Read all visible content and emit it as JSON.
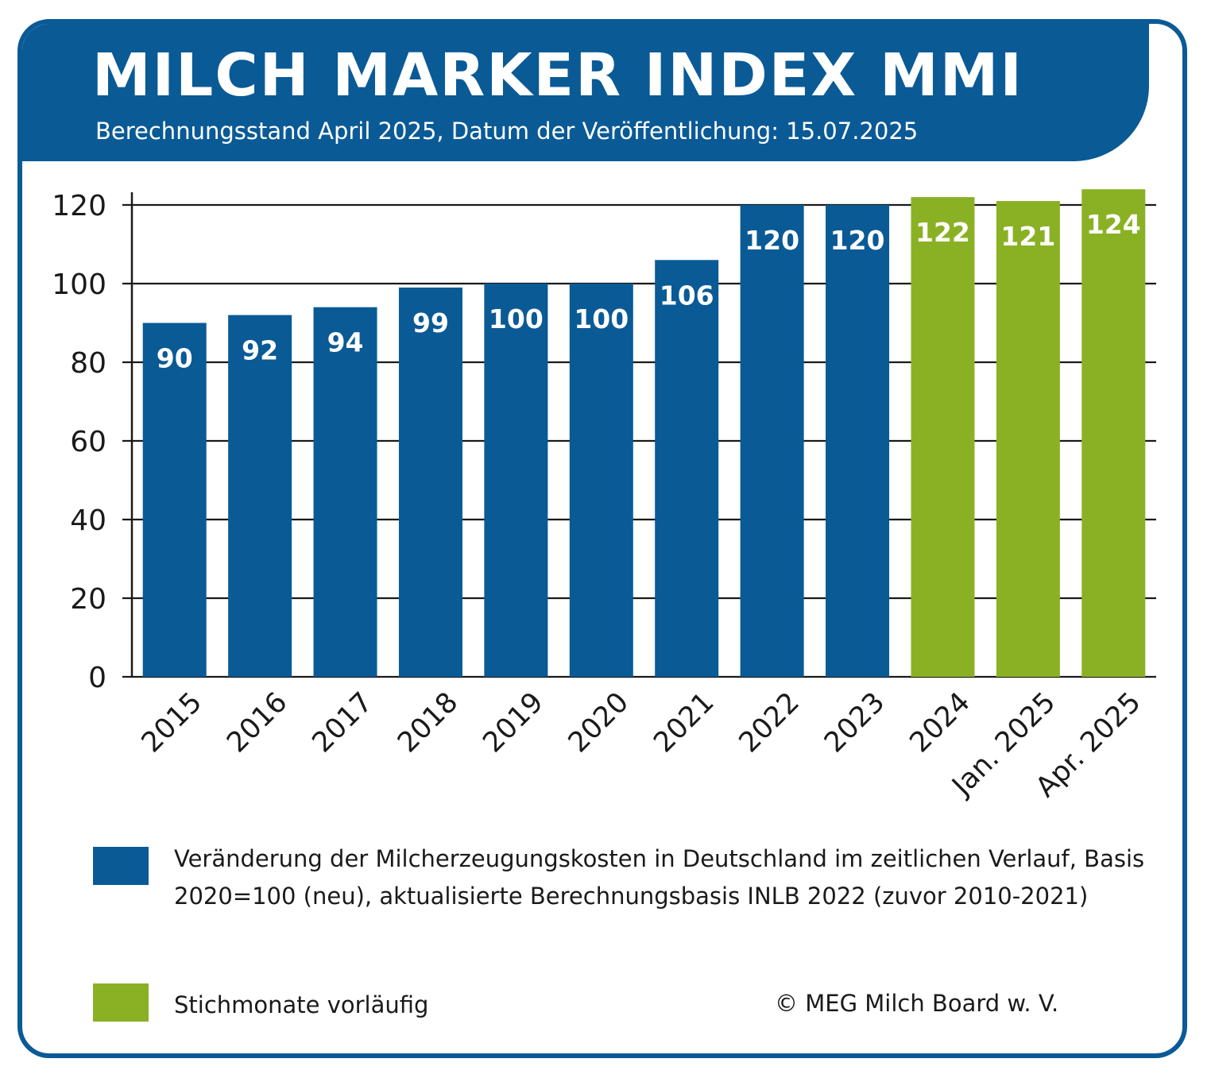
{
  "header": {
    "title": "MILCH MARKER INDEX MMI",
    "subtitle": "Berechnungsstand April 2025, Datum der Veröffentlichung: 15.07.2025"
  },
  "chart_data": {
    "type": "bar",
    "categories": [
      "2015",
      "2016",
      "2017",
      "2018",
      "2019",
      "2020",
      "2021",
      "2022",
      "2023",
      "2024",
      "Jan. 2025",
      "Apr. 2025"
    ],
    "values": [
      90,
      92,
      94,
      99,
      100,
      100,
      106,
      120,
      120,
      122,
      121,
      124
    ],
    "value_labels": [
      "90",
      "92",
      "94",
      "99",
      "100",
      "100",
      "106",
      "120",
      "120",
      "122",
      "121",
      "124"
    ],
    "bar_group": [
      "final",
      "final",
      "final",
      "final",
      "final",
      "final",
      "final",
      "final",
      "final",
      "provisional",
      "provisional",
      "provisional"
    ],
    "ylim": [
      0,
      120
    ],
    "yticks": [
      "0",
      "20",
      "40",
      "60",
      "80",
      "100",
      "120"
    ],
    "grid": "horizontal",
    "colors": {
      "final": "#0a5a96",
      "provisional": "#8ab124"
    }
  },
  "legend": {
    "items": [
      {
        "text": "Veränderung der Milcherzeugungskosten in Deutschland im zeitlichen Verlauf, Basis 2020=100 (neu), aktualisierte Berechnungsbasis INLB 2022 (zuvor 2010-2021)",
        "color": "#0a5a96"
      },
      {
        "text": "Stichmonate vorläufig",
        "color": "#8ab124"
      }
    ]
  },
  "copyright": "© MEG Milch Board w. V."
}
